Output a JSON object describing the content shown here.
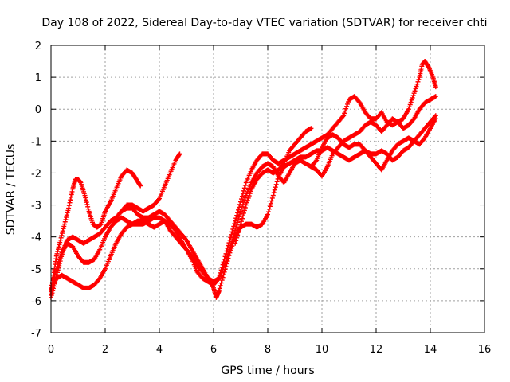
{
  "chart_data": {
    "type": "scatter",
    "title": "Day 108 of 2022, Sidereal Day-to-day VTEC variation (SDTVAR) for receiver chti",
    "xlabel": "GPS time / hours",
    "ylabel": "SDTVAR / TECUs",
    "xlim": [
      0,
      16
    ],
    "ylim": [
      -7,
      2
    ],
    "x_ticks": [
      "0",
      "2",
      "4",
      "6",
      "8",
      "10",
      "12",
      "14",
      "16"
    ],
    "y_ticks": [
      "-7",
      "-6",
      "-5",
      "-4",
      "-3",
      "-2",
      "-1",
      "0",
      "1",
      "2"
    ],
    "grid": true,
    "marker": "+",
    "series_color": "#ff0000",
    "series": [
      {
        "values": [
          [
            0.0,
            -5.8
          ],
          [
            0.1,
            -5.2
          ],
          [
            0.2,
            -4.6
          ],
          [
            0.35,
            -4.1
          ],
          [
            0.5,
            -3.6
          ],
          [
            0.65,
            -3.1
          ],
          [
            0.8,
            -2.5
          ],
          [
            0.9,
            -2.2
          ],
          [
            1.0,
            -2.2
          ],
          [
            1.1,
            -2.3
          ],
          [
            1.25,
            -2.7
          ],
          [
            1.4,
            -3.2
          ],
          [
            1.55,
            -3.6
          ],
          [
            1.7,
            -3.7
          ],
          [
            1.85,
            -3.6
          ],
          [
            2.0,
            -3.2
          ],
          [
            2.2,
            -2.9
          ],
          [
            2.4,
            -2.5
          ],
          [
            2.6,
            -2.1
          ],
          [
            2.8,
            -1.9
          ],
          [
            3.0,
            -2.0
          ],
          [
            3.15,
            -2.2
          ],
          [
            3.3,
            -2.4
          ]
        ]
      },
      {
        "values": [
          [
            0.0,
            -5.9
          ],
          [
            0.15,
            -5.4
          ],
          [
            0.3,
            -4.9
          ],
          [
            0.45,
            -4.4
          ],
          [
            0.6,
            -4.1
          ],
          [
            0.8,
            -4.0
          ],
          [
            1.0,
            -4.1
          ],
          [
            1.2,
            -4.2
          ],
          [
            1.4,
            -4.1
          ],
          [
            1.6,
            -4.0
          ],
          [
            1.8,
            -3.9
          ],
          [
            2.0,
            -3.7
          ],
          [
            2.2,
            -3.5
          ],
          [
            2.4,
            -3.4
          ],
          [
            2.6,
            -3.2
          ],
          [
            2.8,
            -3.1
          ],
          [
            3.0,
            -3.1
          ],
          [
            3.2,
            -3.3
          ],
          [
            3.4,
            -3.4
          ],
          [
            3.6,
            -3.4
          ],
          [
            3.8,
            -3.3
          ],
          [
            4.0,
            -3.2
          ],
          [
            4.2,
            -3.3
          ],
          [
            4.4,
            -3.5
          ],
          [
            4.6,
            -3.7
          ],
          [
            4.8,
            -3.9
          ],
          [
            5.0,
            -4.1
          ],
          [
            5.2,
            -4.4
          ],
          [
            5.4,
            -4.7
          ],
          [
            5.6,
            -5.0
          ],
          [
            5.8,
            -5.3
          ],
          [
            6.0,
            -5.4
          ],
          [
            6.2,
            -5.3
          ],
          [
            6.4,
            -4.7
          ],
          [
            6.6,
            -4.1
          ],
          [
            6.8,
            -3.5
          ],
          [
            7.0,
            -2.9
          ],
          [
            7.2,
            -2.3
          ],
          [
            7.4,
            -1.9
          ],
          [
            7.6,
            -1.6
          ],
          [
            7.8,
            -1.4
          ],
          [
            8.0,
            -1.4
          ],
          [
            8.2,
            -1.6
          ],
          [
            8.4,
            -1.7
          ],
          [
            8.6,
            -1.6
          ],
          [
            8.8,
            -1.5
          ],
          [
            9.0,
            -1.4
          ],
          [
            9.2,
            -1.3
          ],
          [
            9.4,
            -1.2
          ],
          [
            9.6,
            -1.1
          ],
          [
            9.8,
            -1.0
          ],
          [
            10.0,
            -0.9
          ],
          [
            10.2,
            -0.8
          ],
          [
            10.4,
            -0.6
          ],
          [
            10.6,
            -0.4
          ],
          [
            10.8,
            -0.2
          ],
          [
            11.0,
            0.3
          ],
          [
            11.2,
            0.4
          ],
          [
            11.4,
            0.2
          ],
          [
            11.6,
            -0.1
          ],
          [
            11.8,
            -0.3
          ],
          [
            12.0,
            -0.3
          ],
          [
            12.2,
            -0.1
          ],
          [
            12.4,
            -0.4
          ],
          [
            12.6,
            -0.5
          ],
          [
            12.8,
            -0.4
          ],
          [
            13.0,
            -0.3
          ],
          [
            13.2,
            0.0
          ],
          [
            13.4,
            0.5
          ],
          [
            13.6,
            1.0
          ],
          [
            13.7,
            1.4
          ],
          [
            13.8,
            1.5
          ],
          [
            13.95,
            1.3
          ],
          [
            14.1,
            1.0
          ],
          [
            14.2,
            0.7
          ]
        ]
      },
      {
        "values": [
          [
            0.0,
            -5.7
          ],
          [
            0.2,
            -5.3
          ],
          [
            0.4,
            -5.2
          ],
          [
            0.6,
            -5.3
          ],
          [
            0.8,
            -5.4
          ],
          [
            1.0,
            -5.5
          ],
          [
            1.2,
            -5.6
          ],
          [
            1.4,
            -5.6
          ],
          [
            1.6,
            -5.5
          ],
          [
            1.8,
            -5.3
          ],
          [
            2.0,
            -5.0
          ],
          [
            2.2,
            -4.6
          ],
          [
            2.4,
            -4.2
          ],
          [
            2.6,
            -3.9
          ],
          [
            2.8,
            -3.7
          ],
          [
            3.0,
            -3.6
          ],
          [
            3.2,
            -3.5
          ],
          [
            3.4,
            -3.5
          ],
          [
            3.6,
            -3.6
          ],
          [
            3.8,
            -3.7
          ],
          [
            4.0,
            -3.6
          ],
          [
            4.2,
            -3.5
          ],
          [
            4.4,
            -3.6
          ],
          [
            4.6,
            -3.8
          ],
          [
            4.8,
            -4.1
          ],
          [
            5.0,
            -4.4
          ],
          [
            5.2,
            -4.6
          ],
          [
            5.4,
            -4.9
          ],
          [
            5.6,
            -5.1
          ],
          [
            5.8,
            -5.3
          ],
          [
            6.0,
            -5.6
          ],
          [
            6.1,
            -5.9
          ],
          [
            6.2,
            -5.7
          ],
          [
            6.4,
            -5.1
          ],
          [
            6.6,
            -4.5
          ],
          [
            6.8,
            -4.0
          ],
          [
            7.0,
            -3.7
          ],
          [
            7.2,
            -3.6
          ],
          [
            7.4,
            -3.6
          ],
          [
            7.6,
            -3.7
          ],
          [
            7.8,
            -3.6
          ],
          [
            8.0,
            -3.3
          ],
          [
            8.2,
            -2.7
          ],
          [
            8.4,
            -2.1
          ],
          [
            8.6,
            -1.8
          ],
          [
            8.8,
            -1.7
          ],
          [
            9.0,
            -1.6
          ],
          [
            9.2,
            -1.5
          ],
          [
            9.4,
            -1.5
          ],
          [
            9.6,
            -1.4
          ],
          [
            9.8,
            -1.3
          ],
          [
            10.0,
            -1.3
          ],
          [
            10.2,
            -1.2
          ],
          [
            10.4,
            -1.3
          ],
          [
            10.6,
            -1.4
          ],
          [
            10.8,
            -1.5
          ],
          [
            11.0,
            -1.6
          ],
          [
            11.2,
            -1.5
          ],
          [
            11.4,
            -1.4
          ],
          [
            11.6,
            -1.3
          ],
          [
            11.8,
            -1.5
          ],
          [
            12.0,
            -1.7
          ],
          [
            12.2,
            -1.9
          ],
          [
            12.4,
            -1.6
          ],
          [
            12.6,
            -1.3
          ],
          [
            12.8,
            -1.1
          ],
          [
            13.0,
            -1.0
          ],
          [
            13.2,
            -0.9
          ],
          [
            13.4,
            -1.0
          ],
          [
            13.6,
            -1.1
          ],
          [
            13.8,
            -0.9
          ],
          [
            14.0,
            -0.6
          ],
          [
            14.2,
            -0.3
          ]
        ]
      },
      {
        "values": [
          [
            0.0,
            -5.6
          ],
          [
            0.2,
            -5.0
          ],
          [
            0.4,
            -4.5
          ],
          [
            0.6,
            -4.2
          ],
          [
            0.8,
            -4.3
          ],
          [
            1.0,
            -4.6
          ],
          [
            1.2,
            -4.8
          ],
          [
            1.4,
            -4.8
          ],
          [
            1.6,
            -4.7
          ],
          [
            1.8,
            -4.4
          ],
          [
            2.0,
            -4.0
          ],
          [
            2.2,
            -3.7
          ],
          [
            2.4,
            -3.5
          ],
          [
            2.6,
            -3.4
          ],
          [
            2.8,
            -3.5
          ],
          [
            3.0,
            -3.6
          ],
          [
            3.2,
            -3.6
          ],
          [
            3.4,
            -3.6
          ],
          [
            3.6,
            -3.5
          ],
          [
            3.8,
            -3.4
          ],
          [
            4.0,
            -3.4
          ],
          [
            4.2,
            -3.5
          ],
          [
            4.4,
            -3.8
          ],
          [
            4.6,
            -4.0
          ],
          [
            4.8,
            -4.2
          ],
          [
            5.0,
            -4.4
          ],
          [
            5.2,
            -4.7
          ],
          [
            5.4,
            -5.1
          ],
          [
            5.6,
            -5.3
          ],
          [
            5.8,
            -5.4
          ],
          [
            6.0,
            -5.5
          ],
          [
            6.2,
            -5.3
          ],
          [
            6.4,
            -4.9
          ],
          [
            6.6,
            -4.4
          ],
          [
            6.8,
            -3.8
          ],
          [
            7.0,
            -3.2
          ],
          [
            7.2,
            -2.7
          ],
          [
            7.4,
            -2.3
          ],
          [
            7.6,
            -2.0
          ],
          [
            7.8,
            -1.8
          ],
          [
            8.0,
            -1.7
          ],
          [
            8.2,
            -1.8
          ],
          [
            8.4,
            -2.1
          ],
          [
            8.6,
            -2.3
          ],
          [
            8.8,
            -2.0
          ],
          [
            9.0,
            -1.7
          ],
          [
            9.2,
            -1.6
          ],
          [
            9.4,
            -1.7
          ],
          [
            9.6,
            -1.8
          ],
          [
            9.8,
            -1.6
          ],
          [
            10.0,
            -1.2
          ],
          [
            10.2,
            -0.9
          ],
          [
            10.4,
            -0.8
          ],
          [
            10.6,
            -0.9
          ],
          [
            10.8,
            -1.1
          ],
          [
            11.0,
            -1.2
          ],
          [
            11.2,
            -1.1
          ],
          [
            11.4,
            -1.1
          ],
          [
            11.6,
            -1.3
          ],
          [
            11.8,
            -1.4
          ],
          [
            12.0,
            -1.4
          ],
          [
            12.2,
            -1.3
          ],
          [
            12.4,
            -1.4
          ],
          [
            12.6,
            -1.6
          ],
          [
            12.8,
            -1.5
          ],
          [
            13.0,
            -1.3
          ],
          [
            13.2,
            -1.2
          ],
          [
            13.4,
            -1.0
          ],
          [
            13.6,
            -0.8
          ],
          [
            13.8,
            -0.6
          ],
          [
            14.0,
            -0.4
          ],
          [
            14.2,
            -0.2
          ]
        ]
      },
      {
        "values": [
          [
            2.6,
            -3.2
          ],
          [
            2.8,
            -3.0
          ],
          [
            3.0,
            -3.0
          ],
          [
            3.2,
            -3.1
          ],
          [
            3.4,
            -3.2
          ],
          [
            3.6,
            -3.1
          ],
          [
            3.8,
            -3.0
          ],
          [
            4.0,
            -2.8
          ],
          [
            4.2,
            -2.4
          ],
          [
            4.4,
            -2.0
          ],
          [
            4.6,
            -1.6
          ],
          [
            4.75,
            -1.4
          ]
        ]
      },
      {
        "values": [
          [
            6.8,
            -4.2
          ],
          [
            7.0,
            -3.6
          ],
          [
            7.2,
            -3.0
          ],
          [
            7.4,
            -2.5
          ],
          [
            7.6,
            -2.2
          ],
          [
            7.8,
            -2.0
          ],
          [
            8.0,
            -1.9
          ],
          [
            8.2,
            -2.0
          ],
          [
            8.4,
            -1.9
          ],
          [
            8.6,
            -1.7
          ],
          [
            8.8,
            -1.3
          ],
          [
            9.0,
            -1.1
          ],
          [
            9.2,
            -0.9
          ],
          [
            9.4,
            -0.7
          ],
          [
            9.6,
            -0.6
          ]
        ]
      },
      {
        "values": [
          [
            9.6,
            -1.8
          ],
          [
            9.8,
            -1.9
          ],
          [
            10.0,
            -2.1
          ],
          [
            10.2,
            -1.8
          ],
          [
            10.4,
            -1.4
          ],
          [
            10.6,
            -1.2
          ],
          [
            10.8,
            -1.0
          ],
          [
            11.0,
            -0.9
          ],
          [
            11.2,
            -0.8
          ],
          [
            11.4,
            -0.7
          ],
          [
            11.6,
            -0.5
          ],
          [
            11.8,
            -0.4
          ],
          [
            12.0,
            -0.5
          ],
          [
            12.2,
            -0.7
          ],
          [
            12.4,
            -0.5
          ],
          [
            12.6,
            -0.3
          ],
          [
            12.8,
            -0.4
          ],
          [
            13.0,
            -0.6
          ],
          [
            13.2,
            -0.5
          ],
          [
            13.4,
            -0.3
          ],
          [
            13.6,
            0.0
          ],
          [
            13.8,
            0.2
          ],
          [
            14.0,
            0.3
          ],
          [
            14.2,
            0.4
          ]
        ]
      }
    ]
  }
}
